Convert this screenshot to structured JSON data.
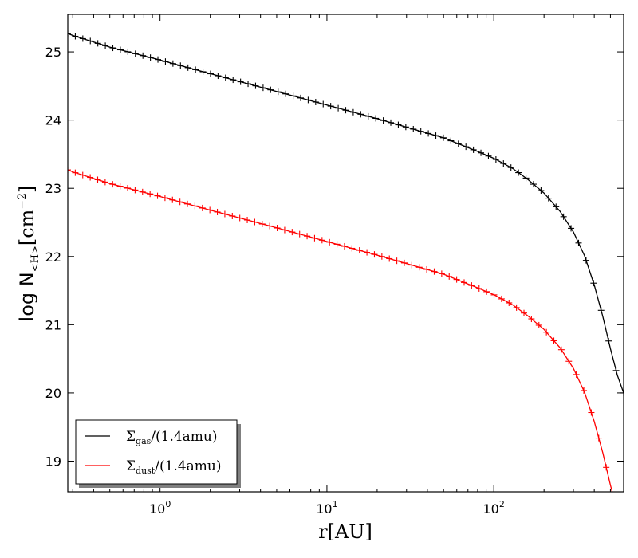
{
  "chart_data": {
    "type": "line",
    "xlabel": "r[AU]",
    "ylabel": "log N",
    "ylabel_subscript": "<H>",
    "ylabel_unit": "[cm",
    "ylabel_unit_exp": "−2",
    "ylabel_unit_close": "]",
    "x_scale": "log",
    "xlim": [
      0.28,
      600
    ],
    "ylim": [
      18.55,
      25.55
    ],
    "x_ticks": [
      {
        "value": 1,
        "base": "10",
        "exp": "0"
      },
      {
        "value": 10,
        "base": "10",
        "exp": "1"
      },
      {
        "value": 100,
        "base": "10",
        "exp": "2"
      }
    ],
    "y_ticks": [
      19,
      20,
      21,
      22,
      23,
      24,
      25
    ],
    "legend_position": "lower-left",
    "colors": {
      "gas": "#000000",
      "dust": "#ff0000"
    },
    "series": [
      {
        "name": "Σgas/(1.4amu)",
        "label_main": "Σ",
        "label_sub": "gas",
        "label_rest": "/(1.4amu)",
        "color": "#000000",
        "x": [
          0.28,
          0.3,
          0.5,
          1,
          2,
          5,
          10,
          20,
          50,
          80,
          100,
          130,
          160,
          200,
          250,
          300,
          350,
          400,
          450,
          500,
          550,
          600
        ],
        "y": [
          25.27,
          25.24,
          25.07,
          24.88,
          24.68,
          24.42,
          24.22,
          24.02,
          23.74,
          23.54,
          23.44,
          23.29,
          23.13,
          22.93,
          22.66,
          22.36,
          22.01,
          21.58,
          21.12,
          20.65,
          20.26,
          20.0
        ]
      },
      {
        "name": "Σdust/(1.4amu)",
        "label_main": "Σ",
        "label_sub": "dust",
        "label_rest": "/(1.4amu)",
        "color": "#ff0000",
        "x": [
          0.28,
          0.3,
          0.5,
          1,
          2,
          5,
          10,
          20,
          50,
          80,
          100,
          130,
          160,
          200,
          250,
          300,
          350,
          400,
          450,
          500,
          550,
          580
        ],
        "y": [
          23.27,
          23.24,
          23.07,
          22.88,
          22.68,
          22.42,
          22.22,
          22.02,
          21.74,
          21.54,
          21.44,
          21.29,
          21.13,
          20.93,
          20.66,
          20.36,
          20.01,
          19.58,
          19.12,
          18.65,
          18.26,
          18.0
        ]
      }
    ]
  }
}
